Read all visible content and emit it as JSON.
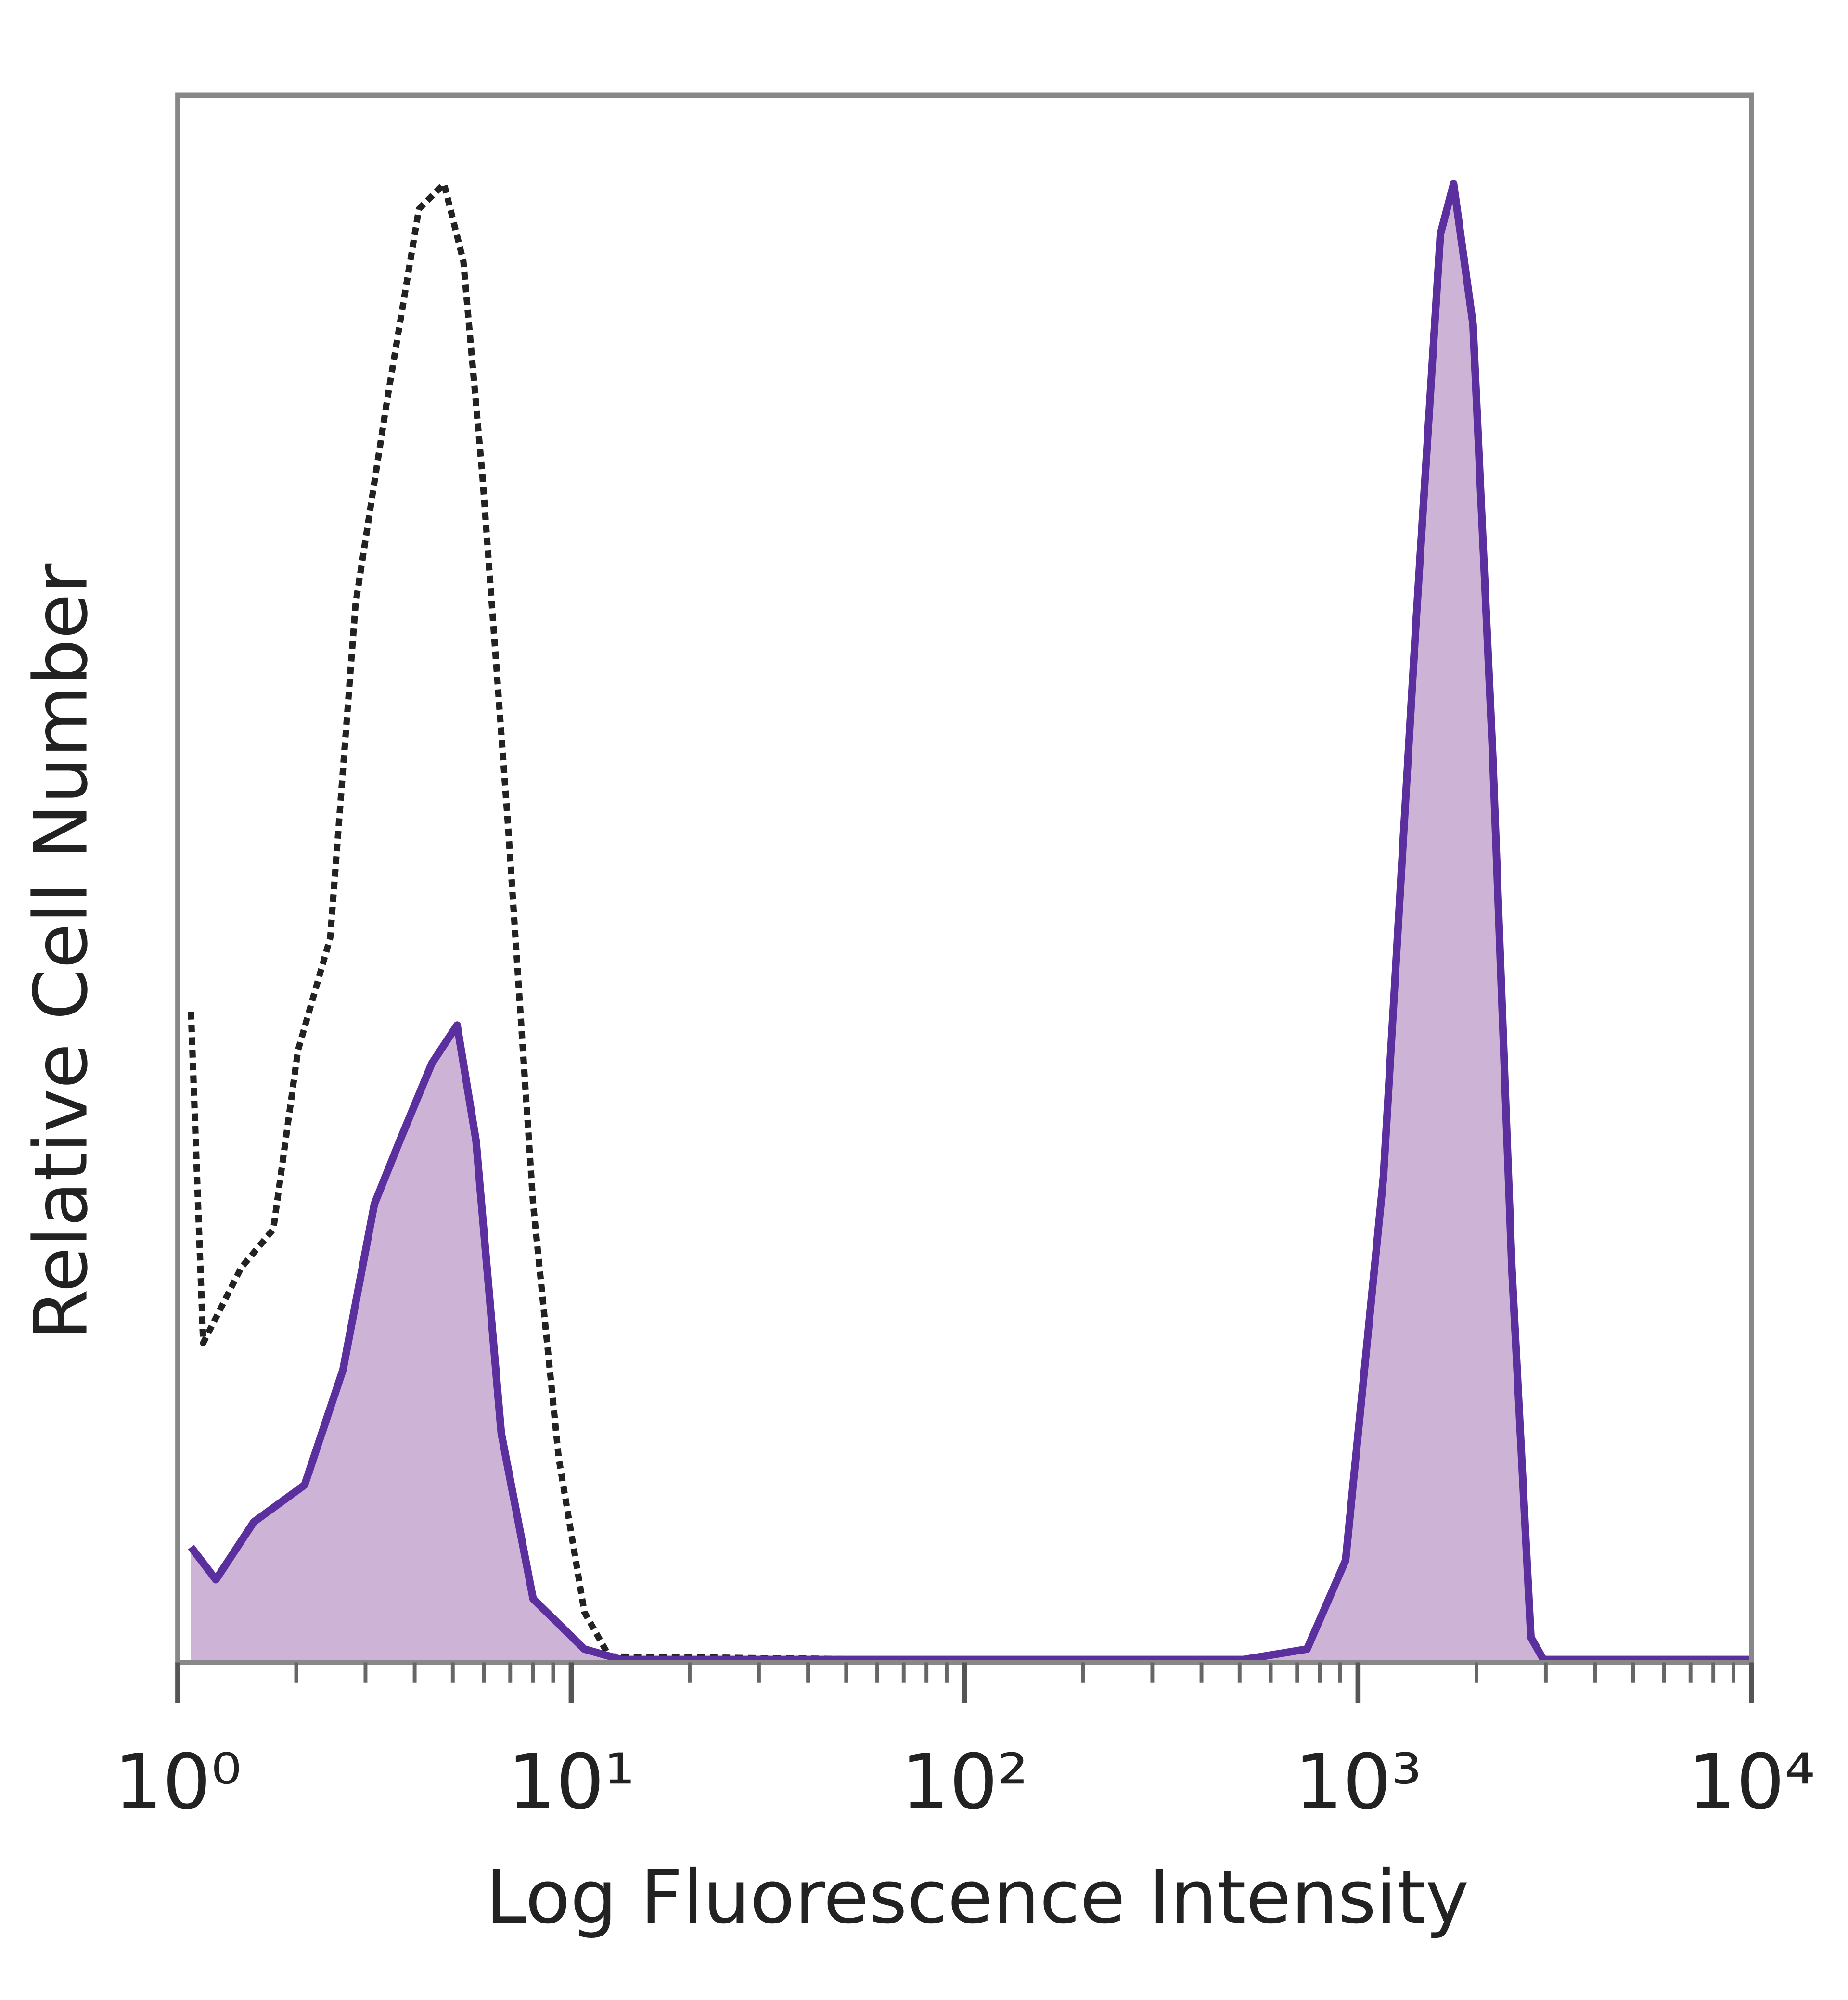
{
  "chart_data": {
    "type": "line",
    "xlabel": "Log Fluorescence Intensity",
    "ylabel": "Relative Cell Number",
    "xscale": "log",
    "xlim": [
      1,
      10000
    ],
    "xticks": [
      {
        "value": 1,
        "label": "10⁰"
      },
      {
        "value": 10,
        "label": "10¹"
      },
      {
        "value": 100,
        "label": "10²"
      },
      {
        "value": 1000,
        "label": "10³"
      },
      {
        "value": 10000,
        "label": "10⁴"
      }
    ],
    "xminorticks": [
      2,
      3,
      4,
      5,
      6,
      7,
      8,
      9,
      20,
      30,
      40,
      50,
      60,
      70,
      80,
      90,
      200,
      300,
      400,
      500,
      600,
      700,
      800,
      900,
      2000,
      3000,
      4000,
      5000,
      6000,
      7000,
      8000,
      9000
    ],
    "ylim": [
      0,
      106
    ],
    "series": [
      {
        "color": "#222222",
        "dash": true,
        "x": [
          1.08,
          1.16,
          1.45,
          1.75,
          2.02,
          2.44,
          2.83,
          3.4,
          4.1,
          4.75,
          5.32,
          5.95,
          6.9,
          8.0,
          9.3,
          10.8,
          12.5,
          64,
          10000
        ],
        "values": [
          44,
          21.6,
          26.7,
          29.3,
          41.4,
          49,
          71.6,
          85.3,
          98.3,
          100,
          94.8,
          80.2,
          56.9,
          31,
          13.8,
          3.4,
          0.4,
          0.2,
          0.2
        ]
      },
      {
        "color": "#5b2f9e",
        "fill": "#cdb4d6",
        "x": [
          1.08,
          1.25,
          1.56,
          2.1,
          2.63,
          3.16,
          3.67,
          4.42,
          5.13,
          5.73,
          6.64,
          8.0,
          10.8,
          13.4,
          512,
          742,
          930,
          1160,
          1400,
          1620,
          1750,
          1960,
          2200,
          2460,
          2750,
          2960,
          10000
        ],
        "values": [
          7.8,
          5.6,
          9.5,
          12,
          19.8,
          31,
          35.3,
          40.5,
          43.1,
          35.3,
          15.5,
          4.3,
          0.9,
          0.2,
          0.2,
          0.9,
          6.9,
          32.8,
          69.8,
          96.6,
          100,
          90.5,
          61.2,
          26.7,
          1.7,
          0.2,
          0.2
        ]
      }
    ]
  }
}
